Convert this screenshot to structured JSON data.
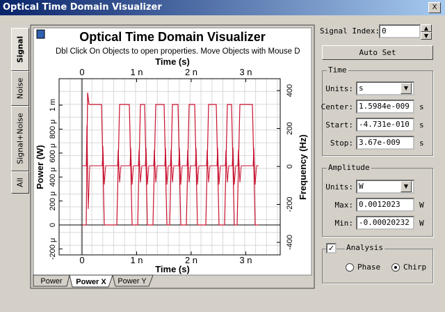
{
  "window": {
    "title": "Optical Time Domain Visualizer"
  },
  "side_tabs": [
    "Signal",
    "Noise",
    "Signal+Noise",
    "All"
  ],
  "plot": {
    "title": "Optical Time Domain Visualizer",
    "hint": "Dbl Click On Objects to open properties.  Move Objects with Mouse D",
    "top_axis": {
      "label": "Time (s)",
      "ticks": [
        "0",
        "1 n",
        "2 n",
        "3 n"
      ]
    },
    "bottom_axis": {
      "label": "Time (s)",
      "ticks": [
        "0",
        "1 n",
        "2 n",
        "3 n"
      ]
    },
    "left_axis": {
      "label": "Power (W)",
      "ticks": [
        "1 m",
        "800 μ",
        "600 μ",
        "400 μ",
        "200 μ",
        "0",
        "-200 μ"
      ]
    },
    "right_axis": {
      "label": "Frequency (Hz)",
      "ticks": [
        "400",
        "200",
        "0",
        "-200",
        "-400"
      ]
    }
  },
  "plot_tabs": [
    "Power",
    "Power X",
    "Power Y"
  ],
  "controls": {
    "signal_index": {
      "label": "Signal Index:",
      "value": "0"
    },
    "auto_set": "Auto Set",
    "time": {
      "title": "Time",
      "units_label": "Units:",
      "units": "s",
      "fields": [
        {
          "label": "Center:",
          "value": "1.5984e-009",
          "unit": "s"
        },
        {
          "label": "Start:",
          "value": "-4.731e-010",
          "unit": "s"
        },
        {
          "label": "Stop:",
          "value": "3.67e-009",
          "unit": "s"
        }
      ]
    },
    "amplitude": {
      "title": "Amplitude",
      "units_label": "Units:",
      "units": "W",
      "fields": [
        {
          "label": "Max:",
          "value": "0.0012023",
          "unit": "W"
        },
        {
          "label": "Min:",
          "value": "-0.00020232",
          "unit": "W"
        }
      ]
    },
    "analysis": {
      "label": "Analysis",
      "checked": true,
      "options": [
        "Phase",
        "Chirp"
      ],
      "selected": 1
    }
  }
}
